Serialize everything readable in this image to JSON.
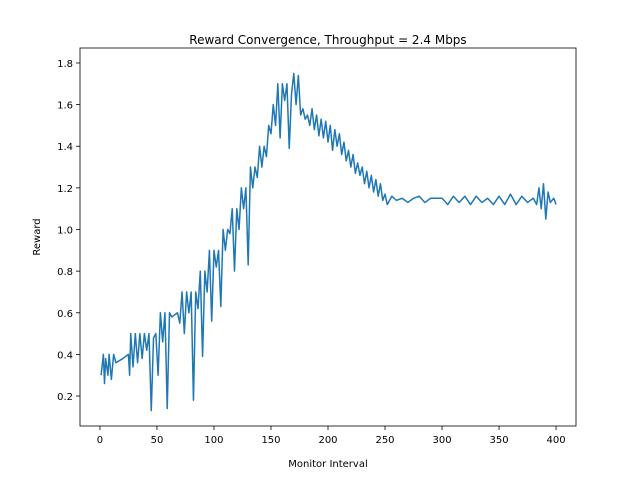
{
  "chart_data": {
    "type": "line",
    "title": "Reward Convergence, Throughput = 2.4 Mbps",
    "x_label": "Monitor Interval",
    "y_label": "Reward",
    "xlim": [
      -17.5,
      417.5
    ],
    "ylim": [
      0.056,
      1.872
    ],
    "xticks": [
      0,
      50,
      100,
      150,
      200,
      250,
      300,
      350,
      400
    ],
    "yticks": [
      0.2,
      0.4,
      0.6,
      0.8,
      {
        "value": 1,
        "label": "1.0"
      },
      1.2,
      1.4,
      1.6,
      1.8
    ],
    "grid": false,
    "series": [
      {
        "name": "Reward",
        "color": "#1f77b4",
        "x": [
          1,
          3,
          4,
          5,
          7,
          8,
          10,
          12,
          14,
          20,
          25,
          26,
          27,
          29,
          31,
          33,
          35,
          37,
          39,
          41,
          43,
          45,
          47,
          49,
          51,
          53,
          55,
          57,
          59,
          61,
          63,
          68,
          70,
          72,
          74,
          76,
          78,
          80,
          82,
          84,
          86,
          88,
          90,
          92,
          94,
          96,
          98,
          100,
          102,
          104,
          106,
          108,
          110,
          112,
          114,
          116,
          118,
          120,
          122,
          124,
          126,
          128,
          130,
          132,
          134,
          136,
          138,
          140,
          142,
          144,
          146,
          148,
          150,
          152,
          154,
          156,
          158,
          160,
          162,
          164,
          166,
          168,
          170,
          172,
          174,
          176,
          178,
          180,
          182,
          184,
          186,
          188,
          190,
          192,
          194,
          196,
          198,
          200,
          202,
          204,
          206,
          208,
          210,
          212,
          214,
          216,
          218,
          220,
          222,
          224,
          226,
          228,
          230,
          232,
          234,
          236,
          238,
          240,
          242,
          244,
          246,
          248,
          250,
          252,
          256,
          260,
          265,
          270,
          275,
          280,
          285,
          290,
          300,
          305,
          310,
          315,
          320,
          325,
          330,
          335,
          340,
          345,
          350,
          355,
          360,
          365,
          370,
          375,
          380,
          383,
          385,
          387,
          389,
          391,
          393,
          395,
          398,
          400
        ],
        "values": [
          0.3,
          0.4,
          0.26,
          0.38,
          0.3,
          0.4,
          0.28,
          0.4,
          0.36,
          0.38,
          0.4,
          0.3,
          0.5,
          0.34,
          0.5,
          0.36,
          0.5,
          0.38,
          0.5,
          0.42,
          0.5,
          0.13,
          0.48,
          0.5,
          0.3,
          0.6,
          0.46,
          0.6,
          0.14,
          0.6,
          0.58,
          0.6,
          0.55,
          0.7,
          0.5,
          0.7,
          0.6,
          0.7,
          0.18,
          0.7,
          0.62,
          0.8,
          0.39,
          0.8,
          0.7,
          0.9,
          0.56,
          0.9,
          0.82,
          0.9,
          0.63,
          1.0,
          0.9,
          1.0,
          0.98,
          1.1,
          0.8,
          1.1,
          1.0,
          1.2,
          1.1,
          1.2,
          0.83,
          1.3,
          1.2,
          1.3,
          1.25,
          1.4,
          1.3,
          1.4,
          1.35,
          1.5,
          1.46,
          1.6,
          1.5,
          1.7,
          1.44,
          1.7,
          1.62,
          1.7,
          1.39,
          1.65,
          1.75,
          1.6,
          1.74,
          1.55,
          1.58,
          1.53,
          1.55,
          1.5,
          1.58,
          1.48,
          1.55,
          1.45,
          1.53,
          1.44,
          1.52,
          1.42,
          1.5,
          1.38,
          1.48,
          1.4,
          1.46,
          1.36,
          1.42,
          1.33,
          1.38,
          1.3,
          1.36,
          1.27,
          1.32,
          1.26,
          1.3,
          1.22,
          1.28,
          1.2,
          1.26,
          1.18,
          1.24,
          1.16,
          1.22,
          1.14,
          1.17,
          1.12,
          1.16,
          1.14,
          1.15,
          1.13,
          1.15,
          1.16,
          1.13,
          1.15,
          1.15,
          1.12,
          1.16,
          1.13,
          1.16,
          1.12,
          1.16,
          1.13,
          1.15,
          1.12,
          1.16,
          1.12,
          1.17,
          1.12,
          1.16,
          1.13,
          1.15,
          1.12,
          1.2,
          1.1,
          1.22,
          1.05,
          1.18,
          1.13,
          1.15,
          1.12
        ]
      }
    ]
  }
}
